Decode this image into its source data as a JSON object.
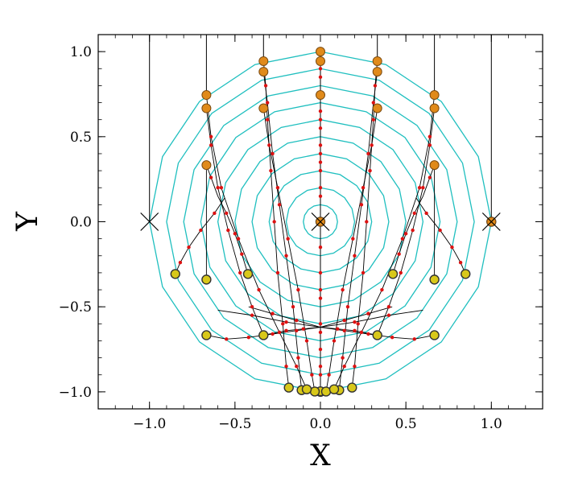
{
  "chart_data": {
    "type": "scatter",
    "title": "",
    "xlabel": "X",
    "ylabel": "Y",
    "xlim": [
      -1.3,
      1.3
    ],
    "ylim": [
      -1.1,
      1.1
    ],
    "xticks": [
      -1.0,
      -0.5,
      0.0,
      0.5,
      1.0
    ],
    "yticks": [
      -1.0,
      -0.5,
      0.0,
      0.5,
      1.0
    ],
    "xtick_labels": [
      "−1.0",
      "−0.5",
      "0.0",
      "0.5",
      "1.0"
    ],
    "ytick_labels": [
      "−1.0",
      "−0.5",
      "0.0",
      "0.5",
      "1.0"
    ],
    "grid": false,
    "legend": "none",
    "colors": {
      "contour": "#1fbfbf",
      "start_marker": "#e08a1a",
      "end_marker": "#d8c81a",
      "path_point": "#dd1111",
      "path_line": "#000000"
    },
    "contour_radii": [
      0.1,
      0.2,
      0.3,
      0.4,
      0.5,
      0.6,
      0.7,
      0.8,
      0.9,
      1.0
    ],
    "contour_sides": 16,
    "cross_markers": [
      [
        -1.0,
        0.0
      ],
      [
        0.0,
        0.0
      ],
      [
        1.0,
        0.0
      ]
    ],
    "paths": [
      {
        "start": [
          0.0,
          1.0
        ],
        "end": [
          0.0,
          -1.0
        ],
        "points": [
          [
            0.0,
            0.9
          ],
          [
            0.0,
            0.75
          ],
          [
            0.0,
            0.6
          ],
          [
            0.0,
            0.45
          ],
          [
            0.0,
            0.3
          ],
          [
            0.0,
            0.15
          ],
          [
            0.0,
            -0.15
          ],
          [
            0.0,
            -0.3
          ],
          [
            0.0,
            -0.45
          ],
          [
            0.0,
            -0.6
          ],
          [
            0.0,
            -0.75
          ],
          [
            0.0,
            -0.9
          ]
        ]
      },
      {
        "start": [
          0.0,
          0.944
        ],
        "end": [
          0.0,
          -0.997
        ],
        "points": [
          [
            0.0,
            0.85
          ],
          [
            0.0,
            0.65
          ],
          [
            0.0,
            0.4
          ],
          [
            0.0,
            -0.4
          ],
          [
            0.0,
            -0.65
          ],
          [
            0.0,
            -0.85
          ]
        ]
      },
      {
        "start": [
          0.0,
          0.745
        ],
        "end": [
          0.0,
          0.0
        ],
        "points": [
          [
            0.0,
            0.55
          ],
          [
            0.0,
            0.35
          ],
          [
            0.0,
            0.2
          ]
        ]
      },
      {
        "start": [
          0.333,
          0.944
        ],
        "end": [
          0.185,
          -0.975
        ],
        "points": [
          [
            0.32,
            0.8
          ],
          [
            0.31,
            0.6
          ],
          [
            0.29,
            0.3
          ],
          [
            0.27,
            0.0
          ],
          [
            0.25,
            -0.3
          ],
          [
            0.22,
            -0.6
          ],
          [
            0.2,
            -0.85
          ]
        ]
      },
      {
        "start": [
          0.333,
          0.882
        ],
        "end": [
          0.11,
          -0.99
        ],
        "points": [
          [
            0.31,
            0.7
          ],
          [
            0.28,
            0.4
          ],
          [
            0.24,
            0.1
          ],
          [
            0.2,
            -0.2
          ],
          [
            0.16,
            -0.5
          ],
          [
            0.13,
            -0.8
          ]
        ]
      },
      {
        "start": [
          0.333,
          0.667
        ],
        "end": [
          0.033,
          -0.998
        ],
        "points": [
          [
            0.3,
            0.45
          ],
          [
            0.25,
            0.2
          ],
          [
            0.19,
            -0.1
          ],
          [
            0.13,
            -0.4
          ],
          [
            0.08,
            -0.7
          ],
          [
            0.05,
            -0.9
          ]
        ]
      },
      {
        "start": [
          -0.333,
          0.944
        ],
        "end": [
          -0.185,
          -0.975
        ],
        "points": [
          [
            -0.32,
            0.8
          ],
          [
            -0.31,
            0.6
          ],
          [
            -0.29,
            0.3
          ],
          [
            -0.27,
            0.0
          ],
          [
            -0.25,
            -0.3
          ],
          [
            -0.22,
            -0.6
          ],
          [
            -0.2,
            -0.85
          ]
        ]
      },
      {
        "start": [
          -0.333,
          0.882
        ],
        "end": [
          -0.11,
          -0.99
        ],
        "points": [
          [
            -0.31,
            0.7
          ],
          [
            -0.28,
            0.4
          ],
          [
            -0.24,
            0.1
          ],
          [
            -0.2,
            -0.2
          ],
          [
            -0.16,
            -0.5
          ],
          [
            -0.13,
            -0.8
          ]
        ]
      },
      {
        "start": [
          -0.333,
          0.667
        ],
        "end": [
          -0.033,
          -0.998
        ],
        "points": [
          [
            -0.3,
            0.45
          ],
          [
            -0.25,
            0.2
          ],
          [
            -0.19,
            -0.1
          ],
          [
            -0.13,
            -0.4
          ],
          [
            -0.08,
            -0.7
          ],
          [
            -0.05,
            -0.9
          ]
        ]
      },
      {
        "start": [
          0.667,
          0.745
        ],
        "end": [
          0.08,
          -0.985
        ],
        "points": [
          [
            0.64,
            0.5
          ],
          [
            0.58,
            0.2
          ],
          [
            0.48,
            -0.1
          ],
          [
            0.36,
            -0.4
          ],
          [
            0.24,
            -0.65
          ],
          [
            0.14,
            -0.85
          ]
        ]
      },
      {
        "start": [
          0.667,
          0.667
        ],
        "end": [
          0.333,
          -0.667
        ],
        "points": [
          [
            0.64,
            0.45
          ],
          [
            0.6,
            0.2
          ],
          [
            0.54,
            -0.05
          ],
          [
            0.47,
            -0.3
          ],
          [
            0.4,
            -0.5
          ]
        ]
      },
      {
        "start": [
          0.667,
          0.333
        ],
        "end": [
          0.6,
          0.15
        ],
        "points": [
          [
            0.64,
            0.26
          ]
        ]
      },
      {
        "start": [
          -0.667,
          0.745
        ],
        "end": [
          -0.08,
          -0.985
        ],
        "points": [
          [
            -0.64,
            0.5
          ],
          [
            -0.58,
            0.2
          ],
          [
            -0.48,
            -0.1
          ],
          [
            -0.36,
            -0.4
          ],
          [
            -0.24,
            -0.65
          ],
          [
            -0.14,
            -0.85
          ]
        ]
      },
      {
        "start": [
          -0.667,
          0.667
        ],
        "end": [
          -0.333,
          -0.667
        ],
        "points": [
          [
            -0.64,
            0.45
          ],
          [
            -0.6,
            0.2
          ],
          [
            -0.54,
            -0.05
          ],
          [
            -0.47,
            -0.3
          ],
          [
            -0.4,
            -0.5
          ]
        ]
      },
      {
        "start": [
          -0.667,
          0.333
        ],
        "end": [
          -0.6,
          0.15
        ],
        "points": [
          [
            -0.64,
            0.26
          ]
        ]
      },
      {
        "start": [
          0.6,
          0.15
        ],
        "end": [
          0.424,
          -0.307
        ],
        "points": [
          [
            0.55,
            0.05
          ],
          [
            0.5,
            -0.07
          ],
          [
            0.46,
            -0.19
          ]
        ]
      },
      {
        "start": [
          -0.6,
          0.15
        ],
        "end": [
          -0.424,
          -0.307
        ],
        "points": [
          [
            -0.55,
            0.05
          ],
          [
            -0.5,
            -0.07
          ],
          [
            -0.46,
            -0.19
          ]
        ]
      },
      {
        "start": [
          0.56,
          0.14
        ],
        "end": [
          0.849,
          -0.307
        ],
        "points": [
          [
            0.62,
            0.05
          ],
          [
            0.7,
            -0.05
          ],
          [
            0.77,
            -0.15
          ],
          [
            0.82,
            -0.24
          ]
        ]
      },
      {
        "start": [
          -0.56,
          0.14
        ],
        "end": [
          -0.849,
          -0.307
        ],
        "points": [
          [
            -0.62,
            0.05
          ],
          [
            -0.7,
            -0.05
          ],
          [
            -0.77,
            -0.15
          ],
          [
            -0.82,
            -0.24
          ]
        ]
      },
      {
        "start": [
          0.667,
          0.333
        ],
        "end": [
          0.667,
          -0.34
        ],
        "points": []
      },
      {
        "start": [
          -0.667,
          0.333
        ],
        "end": [
          -0.667,
          -0.34
        ],
        "points": []
      },
      {
        "start": [
          0.667,
          -0.667
        ],
        "end": [
          0.0,
          -0.62
        ],
        "points": [
          [
            0.55,
            -0.69
          ],
          [
            0.42,
            -0.68
          ],
          [
            0.28,
            -0.66
          ],
          [
            0.14,
            -0.64
          ]
        ]
      },
      {
        "start": [
          -0.667,
          -0.667
        ],
        "end": [
          0.0,
          -0.62
        ],
        "points": [
          [
            -0.55,
            -0.69
          ],
          [
            -0.42,
            -0.68
          ],
          [
            -0.28,
            -0.66
          ],
          [
            -0.14,
            -0.64
          ]
        ]
      },
      {
        "start": [
          0.333,
          -0.667
        ],
        "end": [
          0.0,
          -0.62
        ],
        "points": [
          [
            0.2,
            -0.64
          ],
          [
            0.1,
            -0.63
          ]
        ]
      },
      {
        "start": [
          -0.333,
          -0.667
        ],
        "end": [
          0.0,
          -0.62
        ],
        "points": [
          [
            -0.2,
            -0.64
          ],
          [
            -0.1,
            -0.63
          ]
        ]
      },
      {
        "start": [
          0.0,
          -0.62
        ],
        "end": [
          0.42,
          -0.5
        ],
        "points": [
          [
            0.14,
            -0.58
          ],
          [
            0.28,
            -0.54
          ]
        ]
      },
      {
        "start": [
          0.0,
          -0.62
        ],
        "end": [
          -0.42,
          -0.5
        ],
        "points": [
          [
            -0.14,
            -0.58
          ],
          [
            -0.28,
            -0.54
          ]
        ]
      },
      {
        "start": [
          0.0,
          -0.62
        ],
        "end": [
          -0.6,
          -0.52
        ],
        "points": [
          [
            -0.2,
            -0.59
          ],
          [
            -0.4,
            -0.55
          ]
        ]
      },
      {
        "start": [
          0.0,
          -0.62
        ],
        "end": [
          0.6,
          -0.52
        ],
        "points": [
          [
            0.2,
            -0.59
          ],
          [
            0.4,
            -0.55
          ]
        ]
      }
    ],
    "vertical_guides": [
      {
        "x": -1.0,
        "y_from": 0.0,
        "y_to": 1.1
      },
      {
        "x": -0.667,
        "y_from": 0.745,
        "y_to": 1.1
      },
      {
        "x": -0.333,
        "y_from": 0.944,
        "y_to": 1.1
      },
      {
        "x": 0.333,
        "y_from": 0.944,
        "y_to": 1.1
      },
      {
        "x": 0.667,
        "y_from": 0.745,
        "y_to": 1.1
      },
      {
        "x": 1.0,
        "y_from": 0.0,
        "y_to": 1.1
      }
    ],
    "start_markers": [
      [
        0.0,
        1.0
      ],
      [
        0.0,
        0.944
      ],
      [
        0.0,
        0.745
      ],
      [
        0.333,
        0.944
      ],
      [
        0.333,
        0.882
      ],
      [
        0.333,
        0.667
      ],
      [
        -0.333,
        0.944
      ],
      [
        -0.333,
        0.882
      ],
      [
        -0.333,
        0.667
      ],
      [
        0.667,
        0.745
      ],
      [
        0.667,
        0.667
      ],
      [
        0.667,
        0.333
      ],
      [
        -0.667,
        0.745
      ],
      [
        -0.667,
        0.667
      ],
      [
        -0.667,
        0.333
      ],
      [
        0.0,
        0.0
      ],
      [
        1.0,
        0.0
      ]
    ],
    "end_markers": [
      [
        0.0,
        -1.0
      ],
      [
        0.0,
        -0.997
      ],
      [
        0.033,
        -0.998
      ],
      [
        -0.033,
        -0.998
      ],
      [
        0.11,
        -0.99
      ],
      [
        -0.11,
        -0.99
      ],
      [
        0.08,
        -0.985
      ],
      [
        -0.08,
        -0.985
      ],
      [
        0.185,
        -0.975
      ],
      [
        -0.185,
        -0.975
      ],
      [
        0.333,
        -0.667
      ],
      [
        -0.333,
        -0.667
      ],
      [
        0.667,
        -0.667
      ],
      [
        -0.667,
        -0.667
      ],
      [
        0.667,
        -0.34
      ],
      [
        -0.667,
        -0.34
      ],
      [
        0.424,
        -0.307
      ],
      [
        -0.424,
        -0.307
      ],
      [
        0.849,
        -0.307
      ],
      [
        -0.849,
        -0.307
      ],
      [
        1.0,
        0.0
      ],
      [
        0.0,
        0.0
      ]
    ]
  }
}
